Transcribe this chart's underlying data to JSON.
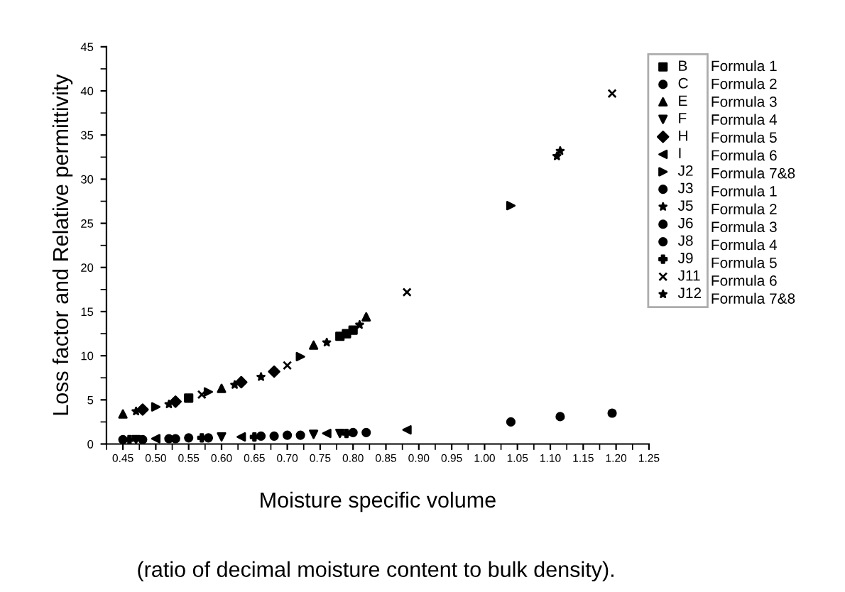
{
  "chart_data": {
    "type": "scatter",
    "xlabel": "Moisture specific volume",
    "ylabel": "Loss factor and Relative permittivity",
    "annotations": [
      "(ratio of decimal moisture content to bulk density).",
      "Formula 1",
      "Formula 2",
      "Formula 3",
      "Formula 4",
      "Formula 5",
      "Formula 6",
      "Formula 7&8",
      "Formula 1",
      "Formula 2",
      "Formula 3",
      "Formula 4",
      "Formula 5",
      "Formula 6",
      "Formula 7&8"
    ],
    "xlim": [
      0.425,
      1.25
    ],
    "xticks": [
      {
        "value": 0.45,
        "label": "0.45"
      },
      {
        "value": 0.5,
        "label": "0.50"
      },
      {
        "value": 0.55,
        "label": "0.55"
      },
      {
        "value": 0.6,
        "label": "0.60"
      },
      {
        "value": 0.65,
        "label": "0.65"
      },
      {
        "value": 0.7,
        "label": "0.70"
      },
      {
        "value": 0.75,
        "label": "0.75"
      },
      {
        "value": 0.8,
        "label": "0.80"
      },
      {
        "value": 0.85,
        "label": "0.85"
      },
      {
        "value": 0.9,
        "label": "0.90"
      },
      {
        "value": 0.95,
        "label": "0.95"
      },
      {
        "value": 1.0,
        "label": "1.00"
      },
      {
        "value": 1.05,
        "label": "1.05"
      },
      {
        "value": 1.1,
        "label": "1.10"
      },
      {
        "value": 1.15,
        "label": "1.15"
      },
      {
        "value": 1.2,
        "label": "1.20"
      },
      {
        "value": 1.25,
        "label": "1.25"
      }
    ],
    "ylim": [
      0,
      45
    ],
    "yticks": [
      0,
      5,
      10,
      15,
      20,
      25,
      30,
      35,
      40,
      45
    ],
    "grid": false,
    "legend": "top right",
    "series": [
      {
        "name": "B",
        "color": "#000000",
        "marker": "square",
        "x": [
          0.55,
          0.78,
          0.79,
          0.8
        ],
        "values": [
          5.2,
          12.2,
          12.5,
          12.9
        ]
      },
      {
        "name": "C",
        "color": "#000000",
        "marker": "circle",
        "x": [
          0.45,
          0.55,
          0.7,
          1.04
        ],
        "values": [
          0.5,
          0.7,
          1.0,
          2.5
        ]
      },
      {
        "name": "E",
        "color": "#000000",
        "marker": "triangle",
        "x": [
          0.45,
          0.6,
          0.74,
          0.82
        ],
        "values": [
          3.4,
          6.3,
          11.2,
          14.4
        ]
      },
      {
        "name": "F",
        "color": "#000000",
        "marker": "triangle_down",
        "x": [
          0.47,
          0.6,
          0.74,
          0.78
        ],
        "values": [
          0.5,
          0.8,
          1.1,
          1.2
        ]
      },
      {
        "name": "H",
        "color": "#000000",
        "marker": "diamond",
        "x": [
          0.48,
          0.53,
          0.63,
          0.68
        ],
        "values": [
          3.9,
          4.8,
          7.0,
          8.2
        ]
      },
      {
        "name": "I",
        "color": "#000000",
        "marker": "triangle_left",
        "x": [
          0.5,
          0.63,
          0.76,
          0.882
        ],
        "values": [
          0.6,
          0.8,
          1.2,
          1.6
        ]
      },
      {
        "name": "J2",
        "color": "#000000",
        "marker": "triangle_right",
        "x": [
          0.5,
          0.58,
          0.72,
          1.04
        ],
        "values": [
          4.2,
          5.9,
          9.9,
          27.0
        ]
      },
      {
        "name": "J3",
        "color": "#000000",
        "marker": "circle",
        "x": [
          0.52,
          0.66,
          0.8
        ],
        "values": [
          0.6,
          0.9,
          1.3
        ]
      },
      {
        "name": "J5",
        "color": "#000000",
        "marker": "star",
        "x": [
          0.52,
          0.66,
          0.76,
          1.11
        ],
        "values": [
          4.5,
          7.6,
          11.5,
          32.6
        ]
      },
      {
        "name": "J6",
        "color": "#000000",
        "marker": "circle",
        "x": [
          0.48,
          0.58,
          0.72,
          1.115
        ],
        "values": [
          0.5,
          0.7,
          1.0,
          3.1
        ]
      },
      {
        "name": "J8",
        "color": "#000000",
        "marker": "circle",
        "x": [
          0.53,
          0.68,
          0.82,
          1.194
        ],
        "values": [
          0.6,
          0.9,
          1.3,
          3.5
        ]
      },
      {
        "name": "J9",
        "color": "#000000",
        "marker": "plus",
        "x": [
          0.46,
          0.57,
          0.65,
          0.79
        ],
        "values": [
          0.5,
          0.7,
          0.8,
          1.2
        ]
      },
      {
        "name": "J11",
        "color": "#000000",
        "marker": "cross",
        "x": [
          0.57,
          0.7,
          0.882,
          1.194
        ],
        "values": [
          5.6,
          8.9,
          17.2,
          39.7
        ]
      },
      {
        "name": "J12",
        "color": "#000000",
        "marker": "star",
        "x": [
          0.47,
          0.62,
          0.81,
          1.115
        ],
        "values": [
          3.7,
          6.7,
          13.5,
          33.2
        ]
      }
    ]
  }
}
